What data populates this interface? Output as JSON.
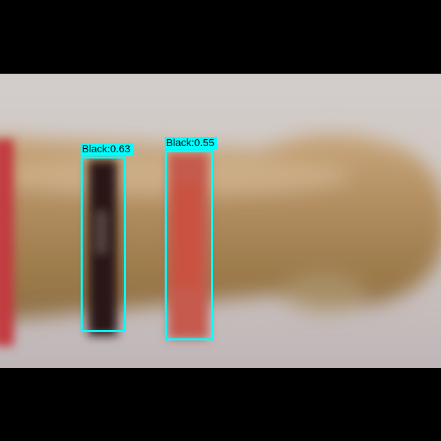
{
  "image": {
    "subject": "blurred resistor with color bands",
    "colors": {
      "letterbox": "#000000",
      "background": "#cfc8c6",
      "body": "#b08a58",
      "band_left": "#c23a3f",
      "band_black": "#2a1612",
      "band_red": "#c65a4e",
      "box": "#00ffff"
    }
  },
  "detections": [
    {
      "class": "Black",
      "score": "0.63",
      "label": "Black:0.63"
    },
    {
      "class": "Black",
      "score": "0.55",
      "label": "Black:0.55"
    }
  ]
}
